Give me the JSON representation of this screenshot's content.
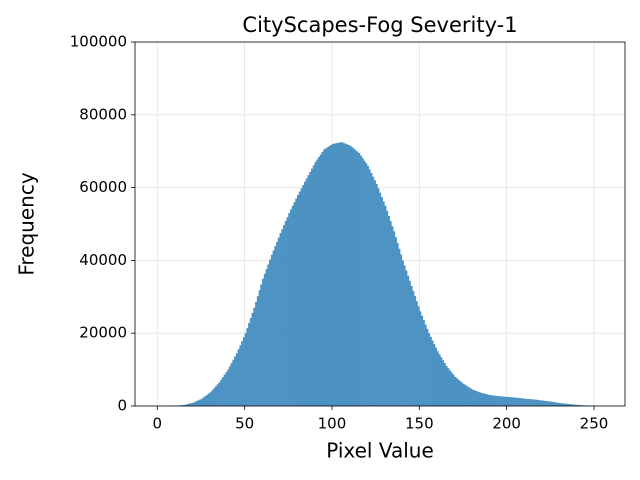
{
  "chart_data": {
    "type": "histogram",
    "title": "CityScapes-Fog Severity-1",
    "x_label": "Pixel Value",
    "y_label": "Frequency",
    "color": "#4c92c3",
    "grid": true,
    "bins": [
      0,
      1,
      2,
      3,
      4,
      5,
      6,
      7,
      8,
      9,
      10,
      11,
      12,
      13,
      14,
      15,
      16,
      17,
      18,
      19,
      20,
      21,
      22,
      23,
      24,
      25,
      26,
      27,
      28,
      29,
      30,
      31,
      32,
      33,
      34,
      35,
      36,
      37,
      38,
      39,
      40,
      41,
      42,
      43,
      44,
      45,
      46,
      47,
      48,
      49,
      50,
      51,
      52,
      53,
      54,
      55,
      56,
      57,
      58,
      59,
      60,
      61,
      62,
      63,
      64,
      65,
      66,
      67,
      68,
      69,
      70,
      71,
      72,
      73,
      74,
      75,
      76,
      77,
      78,
      79,
      80,
      81,
      82,
      83,
      84,
      85,
      86,
      87,
      88,
      89,
      90,
      91,
      92,
      93,
      94,
      95,
      96,
      97,
      98,
      99,
      100,
      101,
      102,
      103,
      104,
      105,
      106,
      107,
      108,
      109,
      110,
      111,
      112,
      113,
      114,
      115,
      116,
      117,
      118,
      119,
      120,
      121,
      122,
      123,
      124,
      125,
      126,
      127,
      128,
      129,
      130,
      131,
      132,
      133,
      134,
      135,
      136,
      137,
      138,
      139,
      140,
      141,
      142,
      143,
      144,
      145,
      146,
      147,
      148,
      149,
      150,
      151,
      152,
      153,
      154,
      155,
      156,
      157,
      158,
      159,
      160,
      161,
      162,
      163,
      164,
      165,
      166,
      167,
      168,
      169,
      170,
      171,
      172,
      173,
      174,
      175,
      176,
      177,
      178,
      179,
      180,
      181,
      182,
      183,
      184,
      185,
      186,
      187,
      188,
      189,
      190,
      191,
      192,
      193,
      194,
      195,
      196,
      197,
      198,
      199,
      200,
      201,
      202,
      203,
      204,
      205,
      206,
      207,
      208,
      209,
      210,
      211,
      212,
      213,
      214,
      215,
      216,
      217,
      218,
      219,
      220,
      221,
      222,
      223,
      224,
      225,
      226,
      227,
      228,
      229,
      230,
      231,
      232,
      233,
      234,
      235,
      236,
      237,
      238,
      239,
      240,
      241,
      242,
      243,
      244,
      245,
      246,
      247,
      248,
      249,
      250,
      251,
      252,
      253,
      254,
      255,
      256
    ],
    "counts": [
      0,
      0,
      0,
      0,
      0,
      0,
      10,
      20,
      30,
      40,
      50,
      100,
      150,
      200,
      250,
      300,
      420,
      540,
      660,
      780,
      900,
      1120,
      1340,
      1560,
      1780,
      2000,
      2360,
      2720,
      3080,
      3440,
      3800,
      4340,
      4880,
      5420,
      5960,
      6500,
      7200,
      7900,
      8600,
      9300,
      10000,
      10900,
      11800,
      12700,
      13600,
      14500,
      15600,
      16700,
      17800,
      18900,
      20000,
      21400,
      22800,
      24200,
      25600,
      27000,
      28600,
      30200,
      31800,
      33400,
      35000,
      36300,
      37600,
      38900,
      40200,
      41500,
      42700,
      43900,
      45100,
      46300,
      47500,
      48600,
      49700,
      50800,
      51900,
      53000,
      54000,
      55000,
      56000,
      57000,
      58000,
      58900,
      59800,
      60700,
      61600,
      62500,
      63400,
      64300,
      65200,
      66100,
      67000,
      67700,
      68400,
      69100,
      69800,
      70500,
      70800,
      71100,
      71400,
      71700,
      72000,
      72100,
      72200,
      72300,
      72400,
      72500,
      72300,
      72100,
      71900,
      71700,
      71500,
      71100,
      70700,
      70300,
      69900,
      69500,
      68800,
      68100,
      67400,
      66700,
      66000,
      65000,
      64000,
      63000,
      62000,
      61000,
      59800,
      58600,
      57400,
      56200,
      55000,
      53600,
      52200,
      50800,
      49400,
      48000,
      46400,
      44800,
      43200,
      41600,
      40000,
      38600,
      37200,
      35800,
      34400,
      33000,
      31600,
      30200,
      28800,
      27400,
      26000,
      24800,
      23600,
      22400,
      21200,
      20000,
      19000,
      18000,
      17000,
      16000,
      15000,
      14200,
      13400,
      12600,
      11800,
      11000,
      10400,
      9800,
      9200,
      8600,
      8000,
      7600,
      7200,
      6800,
      6400,
      6000,
      5700,
      5400,
      5100,
      4800,
      4500,
      4320,
      4140,
      3960,
      3780,
      3600,
      3480,
      3360,
      3240,
      3120,
      3000,
      2940,
      2880,
      2820,
      2760,
      2700,
      2660,
      2620,
      2580,
      2540,
      2500,
      2460,
      2420,
      2380,
      2340,
      2300,
      2240,
      2180,
      2120,
      2060,
      2000,
      1960,
      1920,
      1880,
      1840,
      1800,
      1740,
      1680,
      1620,
      1560,
      1500,
      1440,
      1380,
      1320,
      1260,
      1200,
      1120,
      1040,
      960,
      880,
      800,
      750,
      700,
      650,
      600,
      550,
      500,
      450,
      400,
      350,
      300,
      270,
      240,
      210,
      180,
      150,
      130,
      110,
      90,
      70,
      50,
      40,
      30,
      20,
      10,
      0
    ],
    "xlim": [
      -12.75,
      267.75
    ],
    "xticks": [
      0,
      50,
      100,
      150,
      200,
      250
    ],
    "ylim": [
      0,
      100000
    ],
    "yticks": [
      0,
      20000,
      40000,
      60000,
      80000,
      100000
    ]
  }
}
